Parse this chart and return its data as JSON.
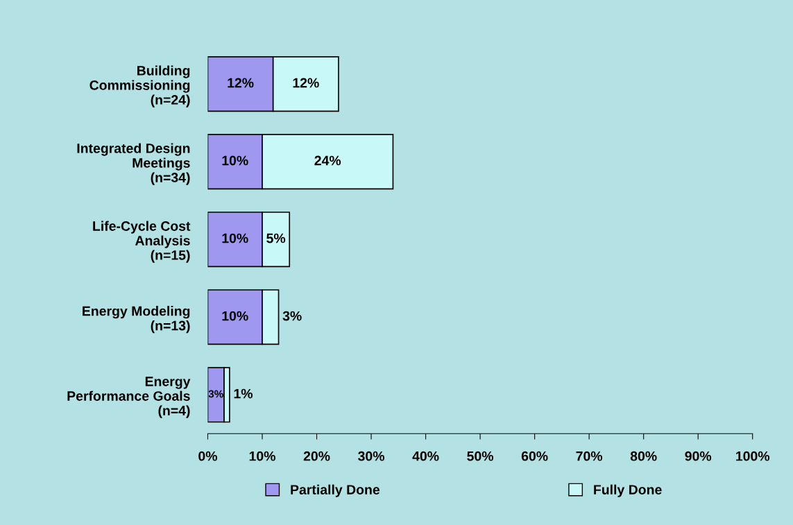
{
  "chart_data": {
    "type": "bar",
    "orientation": "horizontal",
    "stacked": true,
    "categories": [
      "Building\nCommissioning\n(n=24)",
      "Integrated Design\nMeetings\n(n=34)",
      "Life-Cycle Cost\nAnalysis\n(n=15)",
      "Energy Modeling\n(n=13)",
      "Energy\nPerformance Goals\n(n=4)"
    ],
    "series": [
      {
        "name": "Partially Done",
        "color": "#9f98f0",
        "values": [
          12,
          10,
          10,
          10,
          3
        ],
        "value_labels": [
          "12%",
          "10%",
          "10%",
          "10%",
          "3%"
        ]
      },
      {
        "name": "Fully Done",
        "color": "#c8f8f8",
        "values": [
          12,
          24,
          5,
          3,
          1
        ],
        "value_labels": [
          "12%",
          "24%",
          "5%",
          "3%",
          "1%"
        ]
      }
    ],
    "xlim": [
      0,
      100
    ],
    "xticks": [
      {
        "value": 0,
        "label": "0%"
      },
      {
        "value": 10,
        "label": "10%"
      },
      {
        "value": 20,
        "label": "20%"
      },
      {
        "value": 30,
        "label": "30%"
      },
      {
        "value": 40,
        "label": "40%"
      },
      {
        "value": 50,
        "label": "50%"
      },
      {
        "value": 60,
        "label": "60%"
      },
      {
        "value": 70,
        "label": "70%"
      },
      {
        "value": 80,
        "label": "80%"
      },
      {
        "value": 90,
        "label": "90%"
      },
      {
        "value": 100,
        "label": "100%"
      }
    ],
    "legend": "bottom",
    "grid": false
  }
}
